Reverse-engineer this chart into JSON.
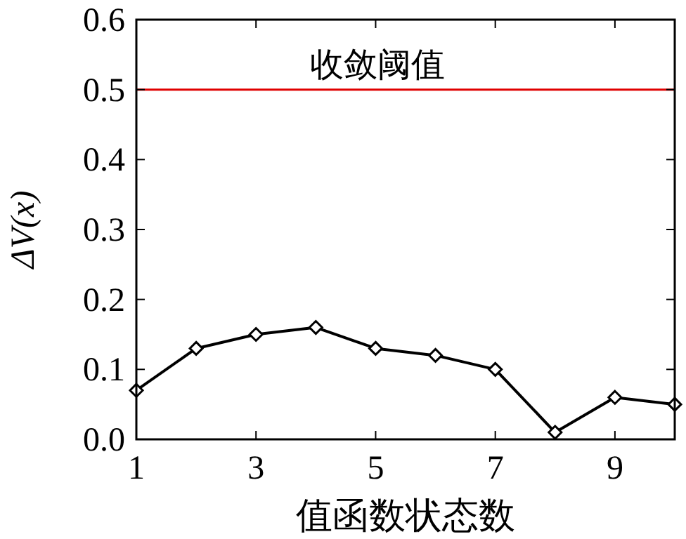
{
  "chart_data": {
    "type": "line",
    "xlabel": "值函数状态数",
    "ylabel": "ΔV(x)",
    "x": [
      1,
      2,
      3,
      4,
      5,
      6,
      7,
      8,
      9,
      10
    ],
    "series": [
      {
        "color": "#000000",
        "values": [
          0.07,
          0.13,
          0.15,
          0.16,
          0.13,
          0.12,
          0.1,
          0.01,
          0.06,
          0.05
        ]
      }
    ],
    "xlim": [
      1,
      10
    ],
    "xticks": [
      1,
      3,
      5,
      7,
      9
    ],
    "ylim": [
      0,
      0.6
    ],
    "yticks": [
      {
        "value": 0,
        "label": "0.0"
      },
      {
        "value": 0.1,
        "label": "0.1"
      },
      {
        "value": 0.2,
        "label": "0.2"
      },
      {
        "value": 0.3,
        "label": "0.3"
      },
      {
        "value": 0.4,
        "label": "0.4"
      },
      {
        "value": 0.5,
        "label": "0.5"
      },
      {
        "value": 0.6,
        "label": "0.6"
      }
    ],
    "ref_lines": [
      {
        "axis": "y",
        "value": 0.5,
        "label": "收敛阈值",
        "color": "#e00000",
        "line_style": "solid"
      }
    ],
    "marker": "diamond",
    "line_style": "solid",
    "grid": false
  }
}
